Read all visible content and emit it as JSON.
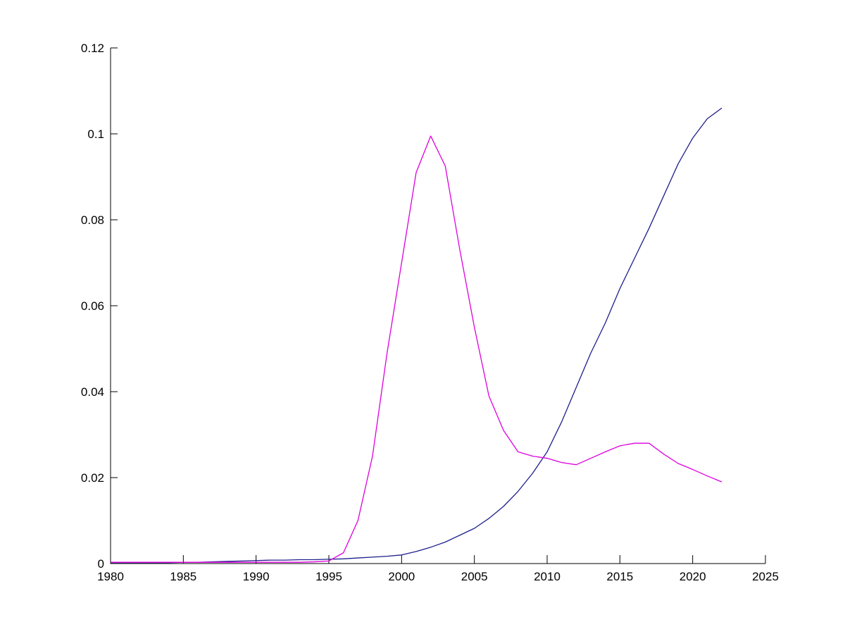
{
  "figure": {
    "background_color": "#ffffff",
    "axis_color": "#000000",
    "title": ""
  },
  "chart_data": {
    "type": "line",
    "title": "",
    "xlabel": "",
    "ylabel": "",
    "xlim": [
      1980,
      2025
    ],
    "ylim": [
      0,
      0.12
    ],
    "grid": false,
    "legend_position": "none",
    "x_ticks": [
      1980,
      1985,
      1990,
      1995,
      2000,
      2005,
      2010,
      2015,
      2020,
      2025
    ],
    "x_tick_labels": [
      "1980",
      "1985",
      "1990",
      "1995",
      "2000",
      "2005",
      "2010",
      "2015",
      "2020",
      "2025"
    ],
    "y_ticks": [
      0,
      0.02,
      0.04,
      0.06,
      0.08,
      0.1,
      0.12
    ],
    "y_tick_labels": [
      "0",
      "0.02",
      "0.04",
      "0.06",
      "0.08",
      "0.1",
      "0.12"
    ],
    "x": [
      1980,
      1981,
      1982,
      1983,
      1984,
      1985,
      1986,
      1987,
      1988,
      1989,
      1990,
      1991,
      1992,
      1993,
      1994,
      1995,
      1996,
      1997,
      1998,
      1999,
      2000,
      2001,
      2002,
      2003,
      2004,
      2005,
      2006,
      2007,
      2008,
      2009,
      2010,
      2011,
      2012,
      2013,
      2014,
      2015,
      2016,
      2017,
      2018,
      2019,
      2020,
      2021,
      2022
    ],
    "series": [
      {
        "name": "blue-series",
        "color": "#1e1e8c",
        "values": [
          0.0002,
          0.0002,
          0.0002,
          0.0002,
          0.0002,
          0.0003,
          0.0003,
          0.0004,
          0.0005,
          0.0006,
          0.0007,
          0.0008,
          0.0008,
          0.0009,
          0.0009,
          0.001,
          0.0011,
          0.0013,
          0.0015,
          0.0017,
          0.002,
          0.0028,
          0.0038,
          0.005,
          0.0066,
          0.0082,
          0.0105,
          0.0133,
          0.0168,
          0.021,
          0.026,
          0.033,
          0.041,
          0.049,
          0.056,
          0.064,
          0.071,
          0.078,
          0.0855,
          0.093,
          0.099,
          0.1035,
          0.106
        ]
      },
      {
        "name": "magenta-series",
        "color": "#dd00dd",
        "values": [
          0.0003,
          0.0003,
          0.0003,
          0.0003,
          0.0003,
          0.0003,
          0.0003,
          0.0003,
          0.0003,
          0.0003,
          0.0003,
          0.0003,
          0.0003,
          0.0003,
          0.0004,
          0.0006,
          0.0025,
          0.01,
          0.025,
          0.049,
          0.07,
          0.091,
          0.0995,
          0.0925,
          0.073,
          0.055,
          0.039,
          0.031,
          0.026,
          0.025,
          0.0245,
          0.0235,
          0.023,
          0.0245,
          0.026,
          0.0274,
          0.028,
          0.028,
          0.0255,
          0.0233,
          0.0219,
          0.0204,
          0.019
        ]
      }
    ]
  }
}
